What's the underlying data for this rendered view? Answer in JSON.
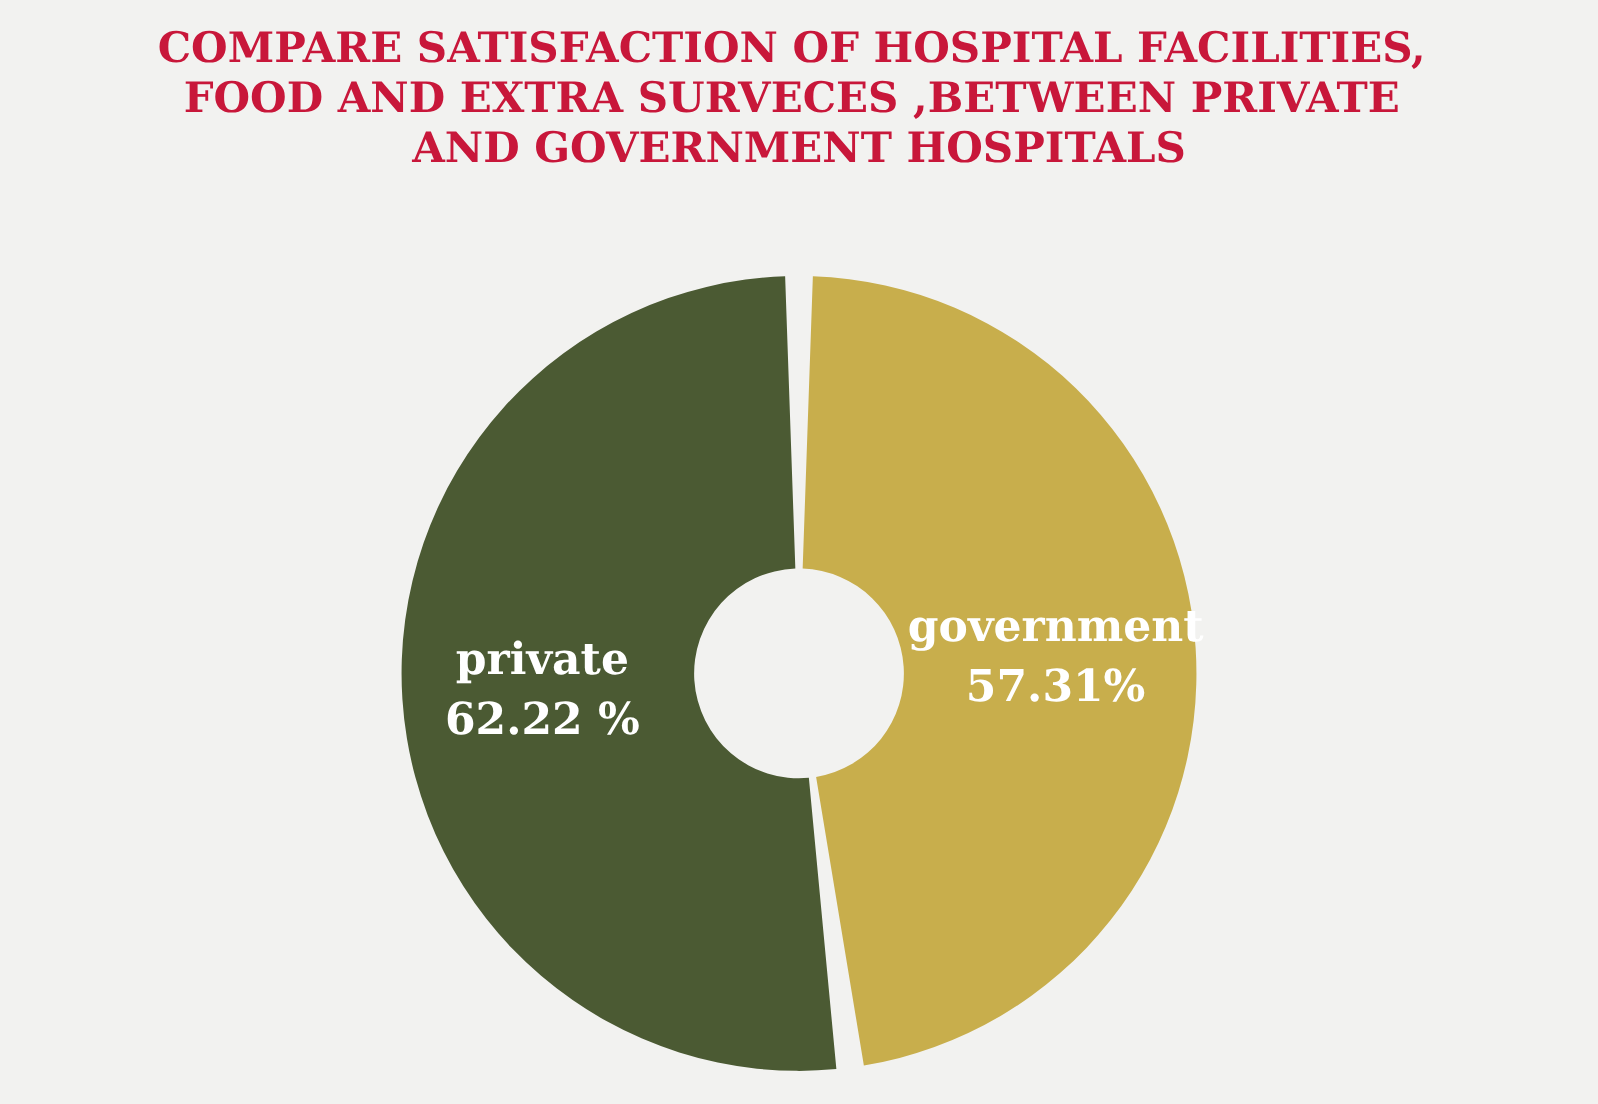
{
  "chart_data": {
    "type": "donut",
    "title": "COMPARE SATISFACTION OF HOSPITAL FACILITIES, FOOD AND EXTRA SURVECES ,BETWEEN PRIVATE AND GOVERNMENT HOSPITALS",
    "categories": [
      "private",
      "government"
    ],
    "values": [
      62.22,
      57.31
    ],
    "value_labels": [
      "62.22 %",
      "57.31%"
    ],
    "colors": [
      "#4b5a33",
      "#c8ae4c"
    ],
    "legend": false
  }
}
